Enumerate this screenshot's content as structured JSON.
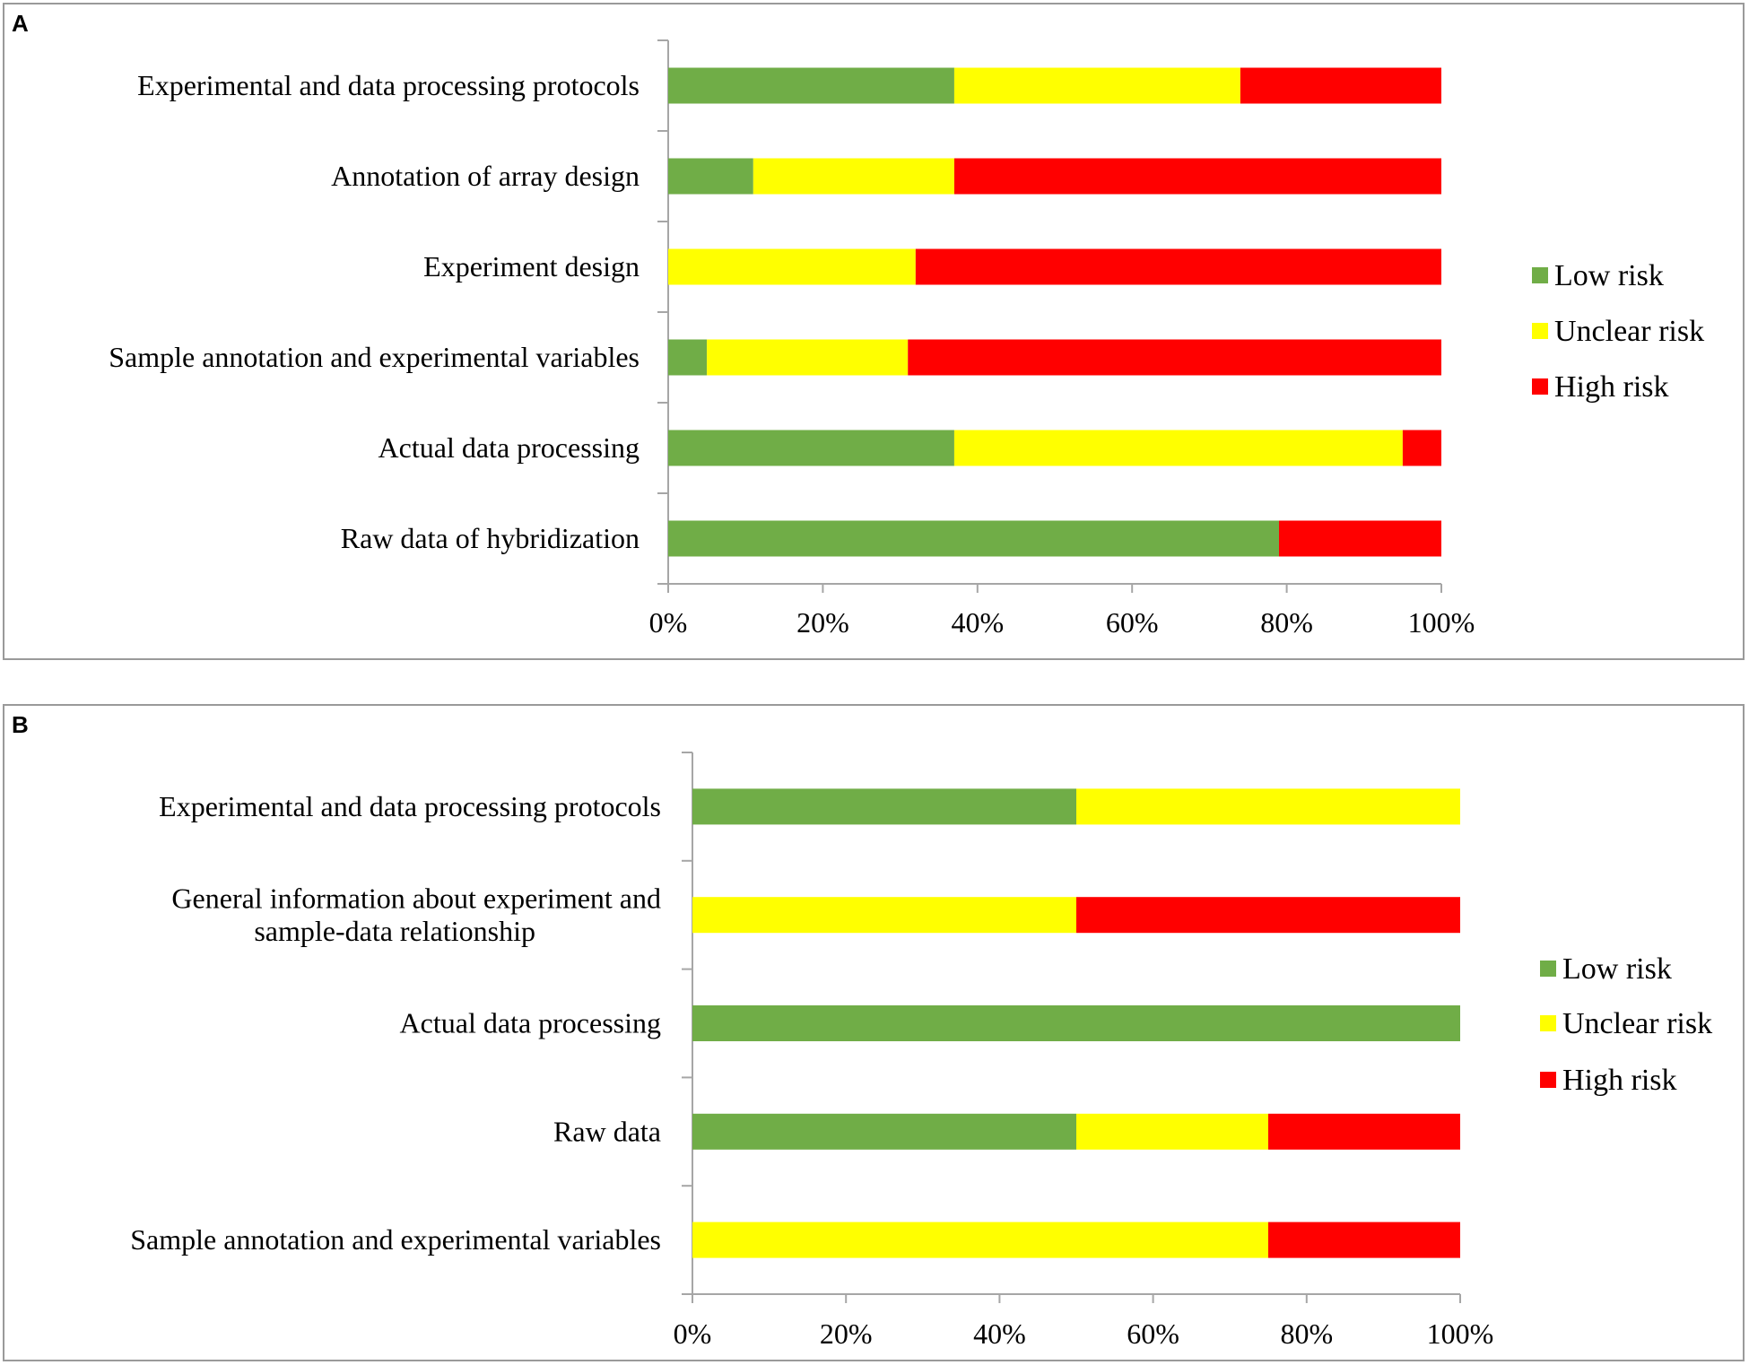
{
  "colors": {
    "low": "#70ad47",
    "unclear": "#ffff00",
    "high": "#ff0000",
    "axis": "#a6a6a6"
  },
  "chart_data": [
    {
      "panel_label": "A",
      "type": "bar",
      "orientation": "horizontal",
      "stacked": "percent",
      "categories": [
        "Experimental and data processing protocols",
        "Annotation of  array design",
        "Experiment design",
        "Sample annotation and experimental variables",
        "Actual data processing",
        "Raw data of hybridization"
      ],
      "series": [
        {
          "name": "Low risk",
          "color_key": "low",
          "values": [
            37,
            11,
            0,
            5,
            37,
            79
          ]
        },
        {
          "name": "Unclear risk",
          "color_key": "unclear",
          "values": [
            37,
            26,
            32,
            26,
            58,
            0
          ]
        },
        {
          "name": "High risk",
          "color_key": "high",
          "values": [
            26,
            63,
            68,
            69,
            5,
            21
          ]
        }
      ],
      "x_ticks": [
        "0%",
        "20%",
        "40%",
        "60%",
        "80%",
        "100%"
      ],
      "xlim": [
        0,
        100
      ],
      "legend": "right"
    },
    {
      "panel_label": "B",
      "type": "bar",
      "orientation": "horizontal",
      "stacked": "percent",
      "categories": [
        "Experimental and data processing protocols",
        "General information about experiment and|sample-data relationship",
        "Actual data processing",
        "Raw data",
        "Sample annotation and experimental variables"
      ],
      "series": [
        {
          "name": "Low risk",
          "color_key": "low",
          "values": [
            50,
            0,
            100,
            50,
            0
          ]
        },
        {
          "name": "Unclear risk",
          "color_key": "unclear",
          "values": [
            50,
            50,
            0,
            25,
            75
          ]
        },
        {
          "name": "High risk",
          "color_key": "high",
          "values": [
            0,
            50,
            0,
            25,
            25
          ]
        }
      ],
      "x_ticks": [
        "0%",
        "20%",
        "40%",
        "60%",
        "80%",
        "100%"
      ],
      "xlim": [
        0,
        100
      ],
      "legend": "right"
    }
  ]
}
